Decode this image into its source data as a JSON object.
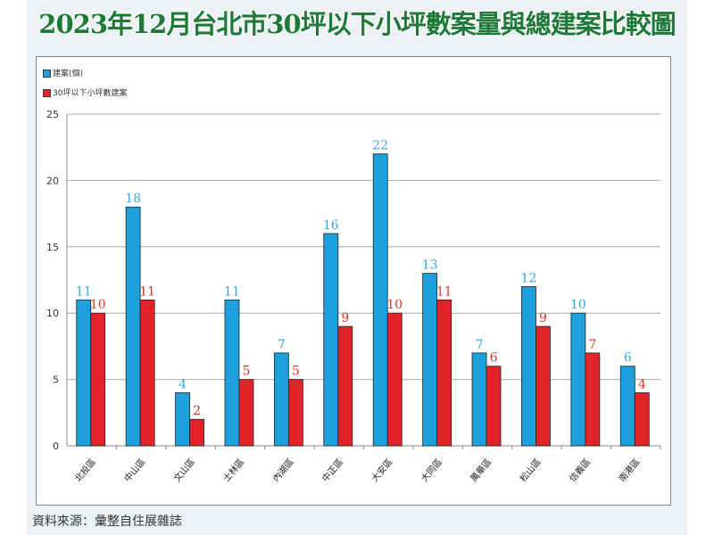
{
  "chart_data": {
    "type": "bar",
    "title": "2023年12月台北市30坪以下小坪數案量與總建案比較圖",
    "categories": [
      "北投區",
      "中山區",
      "文山區",
      "士林區",
      "內湖區",
      "中正區",
      "大安區",
      "大同區",
      "萬華區",
      "松山區",
      "信義區",
      "南港區"
    ],
    "series": [
      {
        "name": "建案(個)",
        "color": "#1ea0dc",
        "label_color": "#3aa6e0",
        "values": [
          11,
          18,
          4,
          11,
          7,
          16,
          22,
          13,
          7,
          12,
          10,
          6
        ]
      },
      {
        "name": "30坪以下小坪數建案",
        "color": "#e0242a",
        "label_color": "#d8352a",
        "values": [
          10,
          11,
          2,
          5,
          5,
          9,
          10,
          11,
          6,
          9,
          7,
          4
        ]
      }
    ],
    "ylim": [
      0,
      25
    ],
    "yticks": [
      0,
      5,
      10,
      15,
      20,
      25
    ],
    "grid": true,
    "legend": "top-left",
    "xlabel": "",
    "ylabel": ""
  },
  "source": "資料來源：彙整自住展雜誌"
}
